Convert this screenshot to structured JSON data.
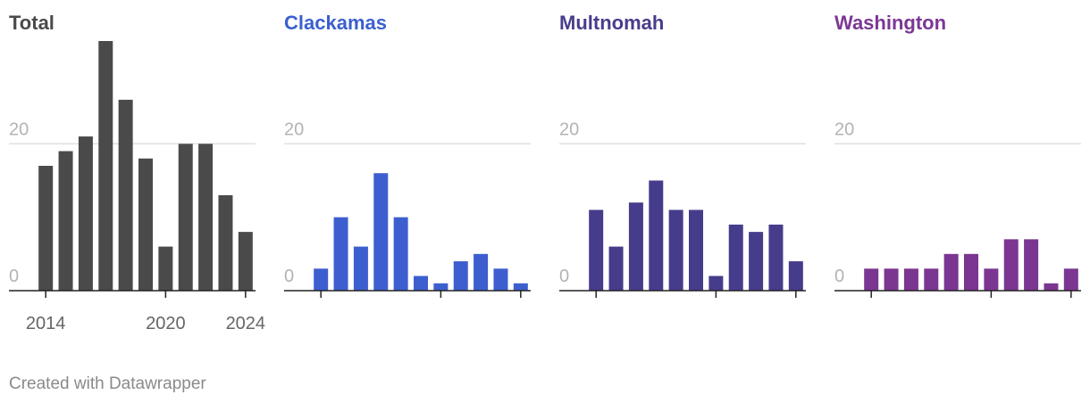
{
  "chart_data": [
    {
      "type": "bar",
      "title": "Total",
      "title_color": "#4a4a4a",
      "color": "#4a4a4a",
      "x": [
        2014,
        2015,
        2016,
        2017,
        2018,
        2019,
        2020,
        2021,
        2022,
        2023,
        2024
      ],
      "values": [
        17,
        19,
        21,
        34,
        26,
        18,
        6,
        20,
        20,
        13,
        8
      ],
      "ylim": [
        0,
        34
      ],
      "yticks": [
        0,
        20
      ],
      "xticks": [
        2014,
        2020,
        2024
      ],
      "grid": true
    },
    {
      "type": "bar",
      "title": "Clackamas",
      "title_color": "#3b5fcf",
      "color": "#3d5ecf",
      "x": [
        2014,
        2015,
        2016,
        2017,
        2018,
        2019,
        2020,
        2021,
        2022,
        2023,
        2024
      ],
      "values": [
        3,
        10,
        6,
        16,
        10,
        2,
        1,
        4,
        5,
        3,
        1
      ],
      "ylim": [
        0,
        34
      ],
      "yticks": [
        0,
        20
      ],
      "grid": true
    },
    {
      "type": "bar",
      "title": "Multnomah",
      "title_color": "#473d8b",
      "color": "#463c8c",
      "x": [
        2014,
        2015,
        2016,
        2017,
        2018,
        2019,
        2020,
        2021,
        2022,
        2023,
        2024
      ],
      "values": [
        11,
        6,
        12,
        15,
        11,
        11,
        2,
        9,
        8,
        9,
        4
      ],
      "ylim": [
        0,
        34
      ],
      "yticks": [
        0,
        20
      ],
      "grid": true
    },
    {
      "type": "bar",
      "title": "Washington",
      "title_color": "#7b3794",
      "color": "#7a3691",
      "x": [
        2014,
        2015,
        2016,
        2017,
        2018,
        2019,
        2020,
        2021,
        2022,
        2023,
        2024
      ],
      "values": [
        3,
        3,
        3,
        3,
        5,
        5,
        3,
        7,
        7,
        1,
        3
      ],
      "ylim": [
        0,
        34
      ],
      "yticks": [
        0,
        20
      ],
      "grid": true
    }
  ],
  "footer": "Created with Datawrapper"
}
